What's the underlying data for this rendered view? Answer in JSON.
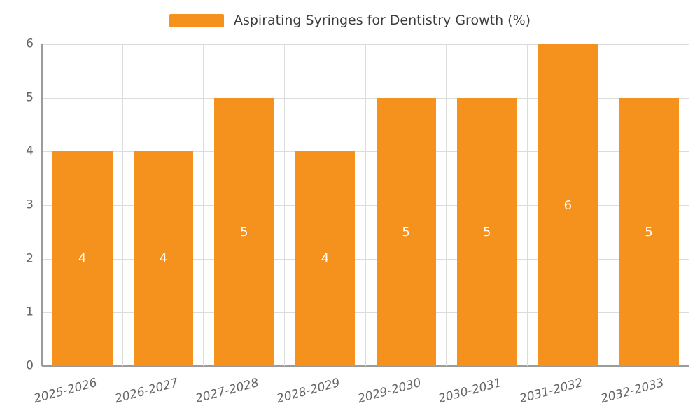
{
  "chart_data": {
    "type": "bar",
    "title": "Aspirating Syringes for Dentistry Growth (%)",
    "categories": [
      "2025-2026",
      "2026-2027",
      "2027-2028",
      "2028-2029",
      "2029-2030",
      "2030-2031",
      "2031-2032",
      "2032-2033"
    ],
    "values": [
      4,
      4,
      5,
      4,
      5,
      5,
      6,
      5
    ],
    "xlabel": "",
    "ylabel": "",
    "ylim": [
      0,
      6
    ],
    "yticks": [
      0,
      1,
      2,
      3,
      4,
      5,
      6
    ],
    "grid": true,
    "legend_position": "top",
    "bar_color": "#f5921e",
    "bar_value_label_color": "#ffffff",
    "tick_label_color": "#666666",
    "title_color": "#3d3d3d",
    "gridline_color": "#dcdcdc",
    "axis_color": "#9b9b9b"
  }
}
